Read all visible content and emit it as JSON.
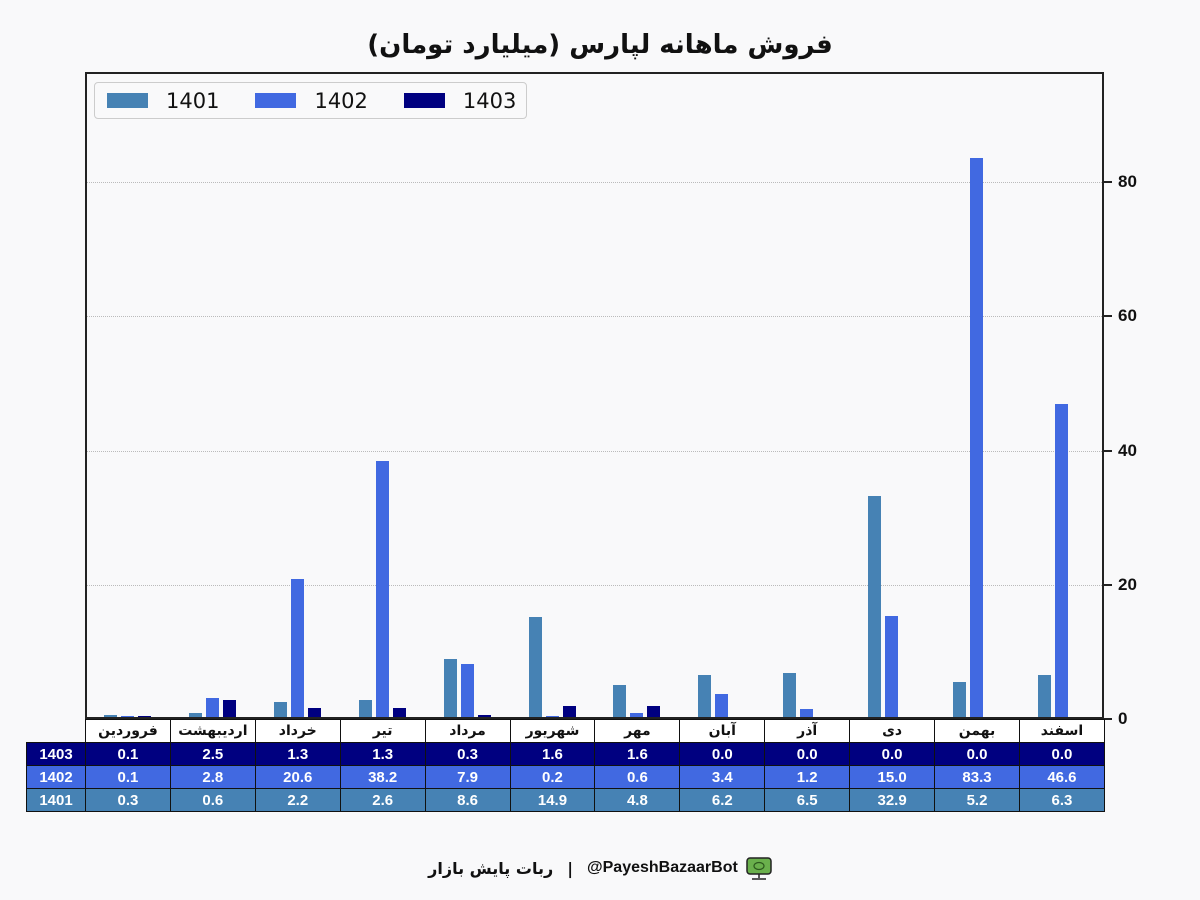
{
  "title": "فروش ماهانه لپارس (میلیارد تومان)",
  "legend": [
    {
      "label": "1401",
      "color": "#4682b4"
    },
    {
      "label": "1402",
      "color": "#4169e1"
    },
    {
      "label": "1403",
      "color": "#000080"
    }
  ],
  "y_axis": {
    "ticks": [
      "0",
      "20",
      "40",
      "60",
      "80"
    ]
  },
  "table": {
    "months": [
      "فروردین",
      "اردیبهشت",
      "خرداد",
      "تیر",
      "مرداد",
      "شهریور",
      "مهر",
      "آبان",
      "آذر",
      "دی",
      "بهمن",
      "اسفند"
    ],
    "rows": [
      {
        "label": "1403",
        "values": [
          "0.1",
          "2.5",
          "1.3",
          "1.3",
          "0.3",
          "1.6",
          "1.6",
          "0.0",
          "0.0",
          "0.0",
          "0.0",
          "0.0"
        ]
      },
      {
        "label": "1402",
        "values": [
          "0.1",
          "2.8",
          "20.6",
          "38.2",
          "7.9",
          "0.2",
          "0.6",
          "3.4",
          "1.2",
          "15.0",
          "83.3",
          "46.6"
        ]
      },
      {
        "label": "1401",
        "values": [
          "0.3",
          "0.6",
          "2.2",
          "2.6",
          "8.6",
          "14.9",
          "4.8",
          "6.2",
          "6.5",
          "32.9",
          "5.2",
          "6.3"
        ]
      }
    ]
  },
  "footer": {
    "handle": "@PayeshBazaarBot",
    "separator": "|",
    "bot_name": "ربات پایش بازار"
  },
  "chart_data": {
    "type": "bar",
    "title": "فروش ماهانه لپارس (میلیارد تومان)",
    "xlabel": "",
    "ylabel": "",
    "ylim": [
      0,
      96
    ],
    "yticks": [
      0,
      20,
      40,
      60,
      80
    ],
    "y_axis_position": "right",
    "grid": "horizontal dotted",
    "legend_position": "upper left",
    "categories": [
      "فروردین",
      "اردیبهشت",
      "خرداد",
      "تیر",
      "مرداد",
      "شهریور",
      "مهر",
      "آبان",
      "آذر",
      "دی",
      "بهمن",
      "اسفند"
    ],
    "series": [
      {
        "name": "1401",
        "color": "#4682b4",
        "values": [
          0.3,
          0.6,
          2.2,
          2.6,
          8.6,
          14.9,
          4.8,
          6.2,
          6.5,
          32.9,
          5.2,
          6.3
        ]
      },
      {
        "name": "1402",
        "color": "#4169e1",
        "values": [
          0.1,
          2.8,
          20.6,
          38.2,
          7.9,
          0.2,
          0.6,
          3.4,
          1.2,
          15.0,
          83.3,
          46.6
        ]
      },
      {
        "name": "1403",
        "color": "#000080",
        "values": [
          0.1,
          2.5,
          1.3,
          1.3,
          0.3,
          1.6,
          1.6,
          0.0,
          0.0,
          0.0,
          0.0,
          0.0
        ]
      }
    ]
  }
}
